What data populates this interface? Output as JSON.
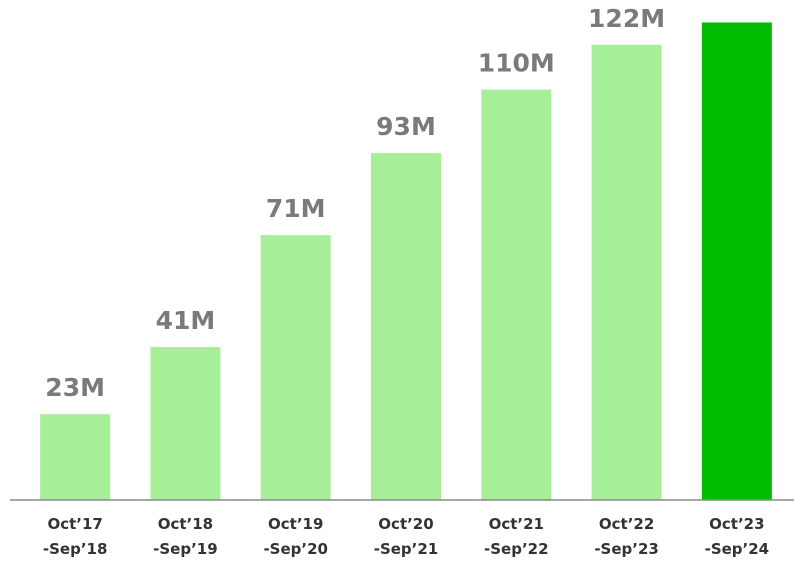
{
  "chart_data": {
    "type": "bar",
    "categories": [
      [
        "Oct’17",
        "-Sep’18"
      ],
      [
        "Oct’18",
        "-Sep’19"
      ],
      [
        "Oct’19",
        "-Sep’20"
      ],
      [
        "Oct’20",
        "-Sep’21"
      ],
      [
        "Oct’21",
        "-Sep’22"
      ],
      [
        "Oct’22",
        "-Sep’23"
      ],
      [
        "Oct’23",
        "-Sep’24"
      ]
    ],
    "values": [
      23,
      41,
      71,
      93,
      110,
      122,
      128
    ],
    "value_labels": [
      "23M",
      "41M",
      "71M",
      "93M",
      "110M",
      "122M",
      null
    ],
    "colors": [
      "#a6ef98",
      "#a6ef98",
      "#a6ef98",
      "#a6ef98",
      "#a6ef98",
      "#a6ef98",
      "#00bb00"
    ],
    "ylim": [
      0,
      130
    ]
  }
}
